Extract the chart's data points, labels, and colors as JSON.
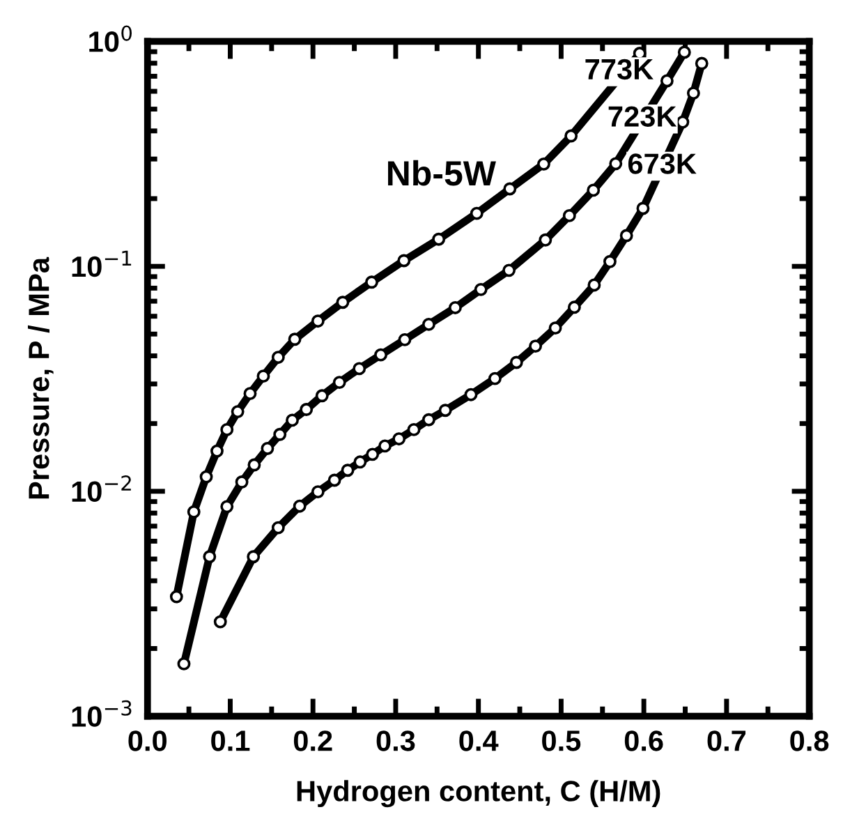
{
  "chart_data": {
    "type": "line",
    "xlabel": "Hydrogen content, C (H/M)",
    "ylabel": "Pressure, P / MPa",
    "log": "y",
    "xlim": [
      0.0,
      0.8
    ],
    "ylim": [
      0.001,
      1
    ],
    "xticks": [
      {
        "value": 0.0,
        "label": "0.0"
      },
      0.1,
      0.2,
      0.3,
      0.4,
      0.5,
      0.6,
      0.7,
      0.8
    ],
    "yticks": [
      {
        "value": 0.001,
        "label": "10$^{−3}$"
      },
      {
        "value": 0.01,
        "label": "10$^{−2}$"
      },
      {
        "value": 0.1,
        "label": "10$^{−1}$"
      },
      {
        "value": 1,
        "label": "10$^{0}$"
      }
    ],
    "grid": false,
    "legend": false,
    "marker": "circle",
    "line_style": "solid",
    "annotations": [
      "Nb-5W",
      "773K",
      "723K",
      "673K"
    ],
    "series": [
      {
        "color": "#000000",
        "x": [
          0.035,
          0.056,
          0.071,
          0.084,
          0.096,
          0.109,
          0.124,
          0.14,
          0.158,
          0.178,
          0.206,
          0.236,
          0.271,
          0.31,
          0.352,
          0.398,
          0.438,
          0.479,
          0.512,
          0.595
        ],
        "values": [
          0.0034,
          0.0081,
          0.0116,
          0.0151,
          0.0188,
          0.0226,
          0.0272,
          0.0325,
          0.0394,
          0.0474,
          0.0571,
          0.0692,
          0.0851,
          0.106,
          0.132,
          0.172,
          0.221,
          0.285,
          0.38,
          0.885
        ]
      },
      {
        "color": "#000000",
        "x": [
          0.044,
          0.075,
          0.096,
          0.114,
          0.129,
          0.145,
          0.16,
          0.175,
          0.192,
          0.211,
          0.232,
          0.256,
          0.282,
          0.311,
          0.34,
          0.372,
          0.403,
          0.437,
          0.481,
          0.51,
          0.539,
          0.566,
          0.628,
          0.649
        ],
        "values": [
          0.00171,
          0.00512,
          0.00855,
          0.011,
          0.0131,
          0.0155,
          0.0179,
          0.0207,
          0.0231,
          0.0266,
          0.0305,
          0.0351,
          0.0404,
          0.0472,
          0.0552,
          0.0655,
          0.0789,
          0.096,
          0.131,
          0.168,
          0.218,
          0.286,
          0.668,
          0.895
        ]
      },
      {
        "color": "#000000",
        "x": [
          0.088,
          0.128,
          0.158,
          0.184,
          0.206,
          0.226,
          0.242,
          0.257,
          0.272,
          0.287,
          0.304,
          0.322,
          0.34,
          0.36,
          0.391,
          0.42,
          0.446,
          0.469,
          0.493,
          0.516,
          0.54,
          0.559,
          0.579,
          0.599,
          0.647,
          0.66,
          0.67
        ],
        "values": [
          0.00263,
          0.00512,
          0.00689,
          0.00859,
          0.00995,
          0.0112,
          0.0124,
          0.0135,
          0.0146,
          0.0159,
          0.0171,
          0.0188,
          0.0208,
          0.0229,
          0.0269,
          0.0317,
          0.0374,
          0.0442,
          0.0532,
          0.0658,
          0.0826,
          0.105,
          0.137,
          0.181,
          0.438,
          0.589,
          0.798
        ]
      }
    ]
  }
}
